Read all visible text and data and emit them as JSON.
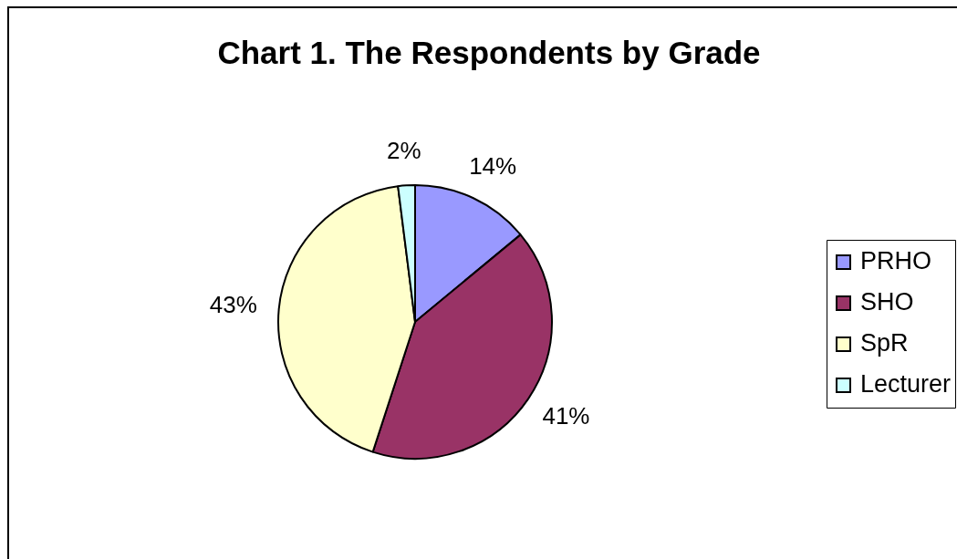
{
  "chart_data": {
    "type": "pie",
    "title": "Chart 1. The Respondents by Grade",
    "categories": [
      "PRHO",
      "SHO",
      "SpR",
      "Lecturer"
    ],
    "values": [
      14,
      41,
      43,
      2
    ],
    "colors": [
      "#9999ff",
      "#993366",
      "#ffffcc",
      "#ccffff"
    ],
    "value_labels": [
      "14%",
      "41%",
      "43%",
      "2%"
    ],
    "legend": "right"
  }
}
